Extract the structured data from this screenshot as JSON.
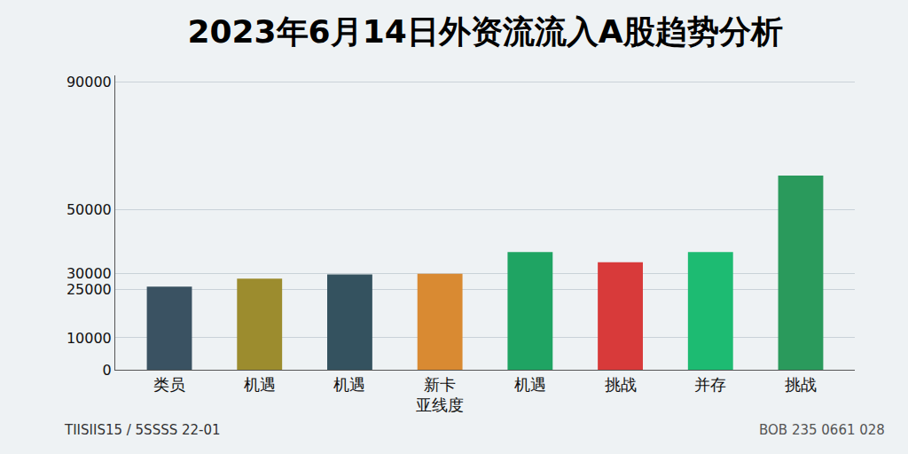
{
  "chart_data": {
    "type": "bar",
    "title": "2023年6月14日外资流流入A股趋势分析",
    "categories": [
      "类员",
      "机遇",
      "机遇",
      "新卡\n亚线度",
      "机遇",
      "挑战",
      "并存",
      "挑战"
    ],
    "values": [
      26000,
      28500,
      29800,
      30000,
      36800,
      33600,
      36800,
      60700
    ],
    "colors": [
      "#3a5262",
      "#9c8c2e",
      "#34525f",
      "#d98a32",
      "#1fa463",
      "#d83a3a",
      "#1dbb72",
      "#2a9a5c"
    ],
    "ylim": [
      0,
      92000
    ],
    "yticks": [
      0,
      10000,
      25000,
      30000,
      50000,
      90000
    ],
    "grid": true,
    "annotations": [
      "TIISIIS15 / 5SSSS 22-01",
      "BOB 235 0661 028"
    ]
  }
}
